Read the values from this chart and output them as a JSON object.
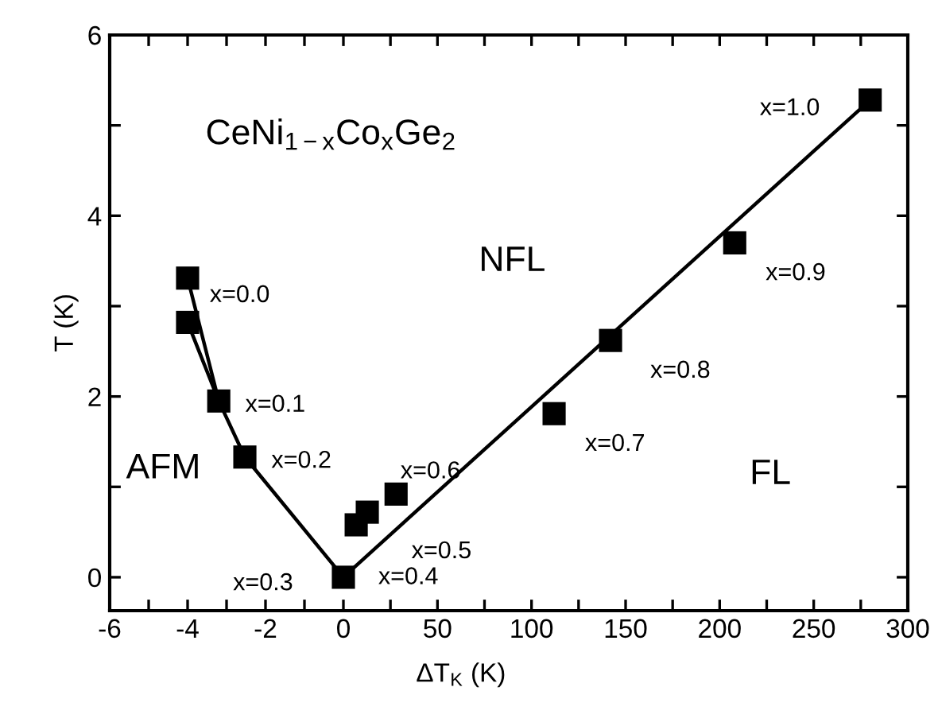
{
  "chart_data": [
    {
      "type": "scatter",
      "ylabel": "T (K)",
      "series": [
        {
          "color": "#000000",
          "marker": "square",
          "x": [
            -4,
            -4,
            -3.2,
            -2.53,
            0
          ],
          "values": [
            3.31,
            2.82,
            1.95,
            1.33,
            0
          ]
        },
        {
          "type": "line",
          "color": "#000000",
          "marker": "none",
          "line_style": "solid",
          "x": [
            -4,
            -3.2,
            -2.53,
            0
          ],
          "values": [
            3.31,
            1.95,
            1.33,
            0
          ]
        },
        {
          "type": "line",
          "color": "#000000",
          "marker": "none",
          "line_style": "solid",
          "x": [
            -4,
            -3.2
          ],
          "values": [
            2.82,
            1.95
          ]
        }
      ],
      "xlim": [
        -6,
        0
      ],
      "xticks": [
        -6,
        {
          "value": -5,
          "label": null
        },
        -4,
        {
          "value": -3,
          "label": null
        },
        -2,
        {
          "value": -1,
          "label": null
        }
      ],
      "ylim": [
        -0.37,
        6
      ],
      "yticks": [
        0,
        {
          "value": 1,
          "label": null
        },
        2,
        {
          "value": 3,
          "label": null
        },
        4,
        {
          "value": 5,
          "label": null
        },
        6
      ],
      "annotations": [
        {
          "text": "x=0.0",
          "x": -4,
          "y": 3.31
        },
        {
          "text": "x=0.1",
          "x": -3.2,
          "y": 1.95
        },
        {
          "text": "x=0.2",
          "x": -2.53,
          "y": 1.33
        },
        {
          "text": "x=0.3",
          "x": 0,
          "y": 0
        },
        "CeNi$_{1−x}$Co$_{x}$Ge$_{2}$",
        "AFM"
      ]
    },
    {
      "type": "scatter",
      "xlabel": "ΔT$_{K}$ (K)",
      "series": [
        {
          "color": "#000000",
          "marker": "square",
          "x": [
            6.8,
            12.7,
            28,
            112,
            142,
            208,
            280
          ],
          "values": [
            0.58,
            0.72,
            0.92,
            1.81,
            2.62,
            3.7,
            5.28
          ]
        },
        {
          "type": "line",
          "color": "#000000",
          "marker": "none",
          "line_style": "solid",
          "x": [
            0,
            280
          ],
          "values": [
            0,
            5.28
          ]
        }
      ],
      "xlim": [
        0,
        300
      ],
      "xticks": [
        0,
        {
          "value": 25,
          "label": null
        },
        50,
        {
          "value": 75,
          "label": null
        },
        100,
        {
          "value": 125,
          "label": null
        },
        150,
        {
          "value": 175,
          "label": null
        },
        200,
        {
          "value": 225,
          "label": null
        },
        250,
        {
          "value": 275,
          "label": null
        },
        300
      ],
      "ylim": [
        -0.37,
        6
      ],
      "yticks": [
        0,
        {
          "value": 1,
          "label": null
        },
        2,
        {
          "value": 3,
          "label": null
        },
        4,
        {
          "value": 5,
          "label": null
        },
        6
      ],
      "tick_labels": "x",
      "annotations": [
        {
          "text": "x=0.4",
          "x": 6.8,
          "y": 0.58
        },
        {
          "text": "x=0.5",
          "x": 12.7,
          "y": 0.72
        },
        {
          "text": "x=0.6",
          "x": 28,
          "y": 0.92
        },
        {
          "text": "x=0.7",
          "x": 112,
          "y": 1.81
        },
        {
          "text": "x=0.8",
          "x": 142,
          "y": 2.62
        },
        {
          "text": "x=0.9",
          "x": 208,
          "y": 3.7
        },
        {
          "text": "x=1.0",
          "x": 280,
          "y": 5.28
        },
        "NFL",
        "FL"
      ]
    }
  ]
}
